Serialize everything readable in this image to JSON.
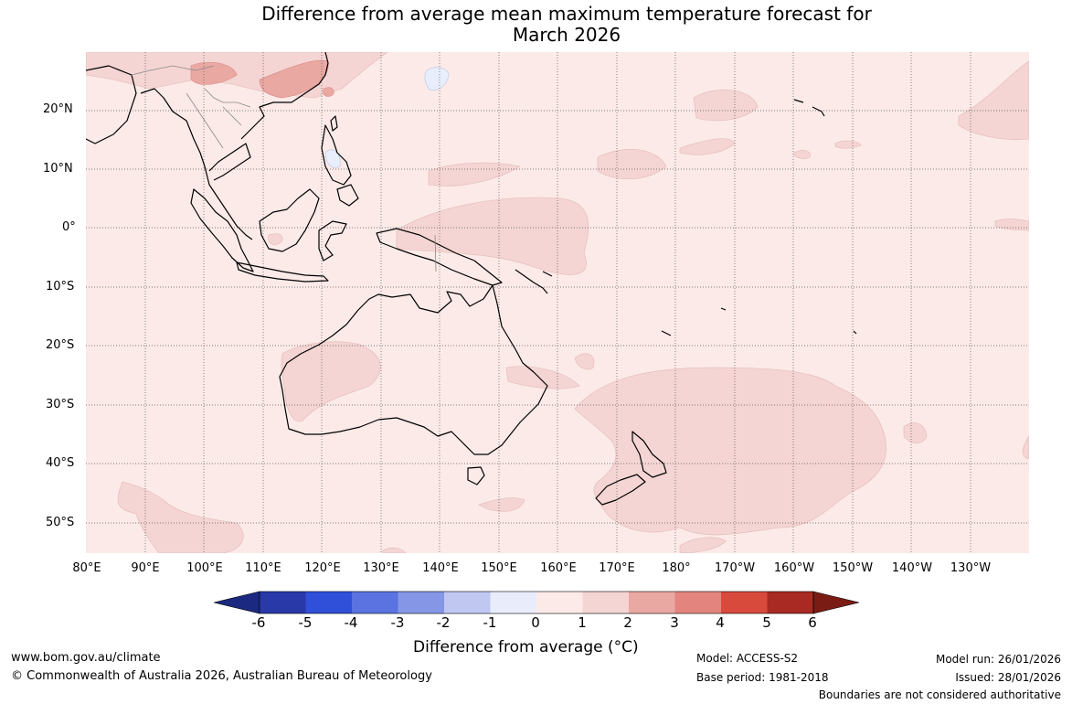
{
  "title": {
    "line1": "Difference from average mean maximum temperature forecast for",
    "line2": "March 2026"
  },
  "map": {
    "lat_labels": [
      "20°N",
      "10°N",
      "0°",
      "10°S",
      "20°S",
      "30°S",
      "40°S",
      "50°S"
    ],
    "lon_labels": [
      "80°E",
      "90°E",
      "100°E",
      "110°E",
      "120°E",
      "130°E",
      "140°E",
      "150°E",
      "160°E",
      "170°E",
      "180°",
      "170°W",
      "160°W",
      "150°W",
      "140°W",
      "130°W"
    ],
    "background_color": "#fbeae8",
    "anomaly_colors": {
      "0_to_1": "#fbeae8",
      "1_to_2": "#f4d5d3",
      "2_to_3": "#eaa8a3",
      "neg_1_to_0": "#e8eefb"
    }
  },
  "colorbar": {
    "labels": [
      "-6",
      "-5",
      "-4",
      "-3",
      "-2",
      "-1",
      "0",
      "1",
      "2",
      "3",
      "4",
      "5",
      "6"
    ],
    "colors": [
      "#1b2a80",
      "#2939a8",
      "#3050d9",
      "#5a73e0",
      "#8596e6",
      "#c0c8f2",
      "#e9ecfb",
      "#fbeae8",
      "#f4d5d3",
      "#eaa8a3",
      "#e3857e",
      "#d84a3c",
      "#a82a22",
      "#7a1c14"
    ],
    "title": "Difference from average (°C)"
  },
  "footer": {
    "website": "www.bom.gov.au/climate",
    "copyright": "© Commonwealth of Australia 2026, Australian Bureau of Meteorology",
    "model": "Model: ACCESS-S2",
    "base_period": "Base period: 1981-2018",
    "model_run": "Model run: 26/01/2026",
    "issued": "Issued: 28/01/2026",
    "disclaimer": "Boundaries are not considered authoritative"
  }
}
